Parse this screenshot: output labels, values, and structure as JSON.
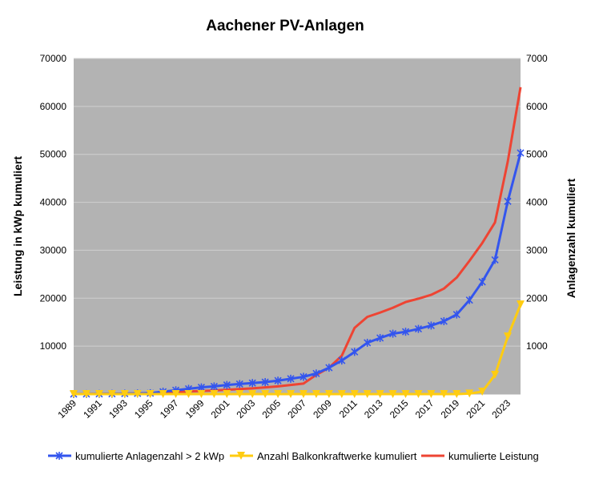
{
  "chart_data": {
    "type": "line",
    "title": "Aachener PV-Anlagen",
    "ylabel_left": "Leistung in kWp kumuliert",
    "ylabel_right": "Anlagenzahl kumuliert",
    "ylim_left": [
      0,
      70000
    ],
    "ylim_right": [
      0,
      7000
    ],
    "yticks_left": [
      "10000",
      "20000",
      "30000",
      "40000",
      "50000",
      "60000",
      "70000"
    ],
    "yticks_right": [
      "1000",
      "2000",
      "3000",
      "4000",
      "5000",
      "6000",
      "7000"
    ],
    "x": [
      1989,
      1990,
      1991,
      1992,
      1993,
      1994,
      1995,
      1996,
      1997,
      1998,
      1999,
      2000,
      2001,
      2002,
      2003,
      2004,
      2005,
      2006,
      2007,
      2008,
      2009,
      2010,
      2011,
      2012,
      2013,
      2014,
      2015,
      2016,
      2017,
      2018,
      2019,
      2020,
      2021,
      2022,
      2023,
      2024
    ],
    "xtick_labels": [
      "1989",
      "1991",
      "1993",
      "1995",
      "1997",
      "1999",
      "2001",
      "2003",
      "2005",
      "2007",
      "2009",
      "2011",
      "2013",
      "2015",
      "2017",
      "2019",
      "2021",
      "2023"
    ],
    "grid": true,
    "legend_position": "bottom",
    "colors": {
      "plot_background": "#b3b3b3",
      "gridline": "#d0d0d0",
      "anlagenzahl": "#3355ee",
      "balkon": "#ffcc11",
      "leistung": "#ee4433"
    },
    "series": [
      {
        "name": "kumulierte Anlagenzahl > 2 kWp",
        "axis": "right",
        "marker": "asterisk",
        "values": [
          0,
          2,
          4,
          6,
          9,
          13,
          18,
          50,
          80,
          110,
          140,
          160,
          190,
          210,
          230,
          250,
          280,
          320,
          360,
          430,
          550,
          700,
          880,
          1070,
          1170,
          1260,
          1300,
          1360,
          1430,
          1520,
          1660,
          1960,
          2340,
          2800,
          4020,
          5030
        ]
      },
      {
        "name": "Anzahl Balkonkraftwerke kumuliert",
        "axis": "right",
        "marker": "triangle-down",
        "values": [
          0,
          0,
          0,
          0,
          0,
          0,
          0,
          0,
          0,
          0,
          0,
          0,
          0,
          0,
          0,
          0,
          0,
          0,
          0,
          0,
          0,
          0,
          0,
          0,
          0,
          0,
          0,
          0,
          0,
          0,
          0,
          10,
          50,
          400,
          1200,
          1870
        ]
      },
      {
        "name": "kumulierte Leistung",
        "axis": "left",
        "marker": "none",
        "values": [
          0,
          20,
          40,
          70,
          100,
          130,
          200,
          300,
          400,
          550,
          650,
          750,
          900,
          1050,
          1200,
          1400,
          1600,
          1900,
          2200,
          4000,
          5500,
          8000,
          13800,
          16100,
          17000,
          18000,
          19200,
          19900,
          20700,
          22000,
          24300,
          27800,
          31500,
          35800,
          48500,
          64000
        ]
      }
    ]
  }
}
